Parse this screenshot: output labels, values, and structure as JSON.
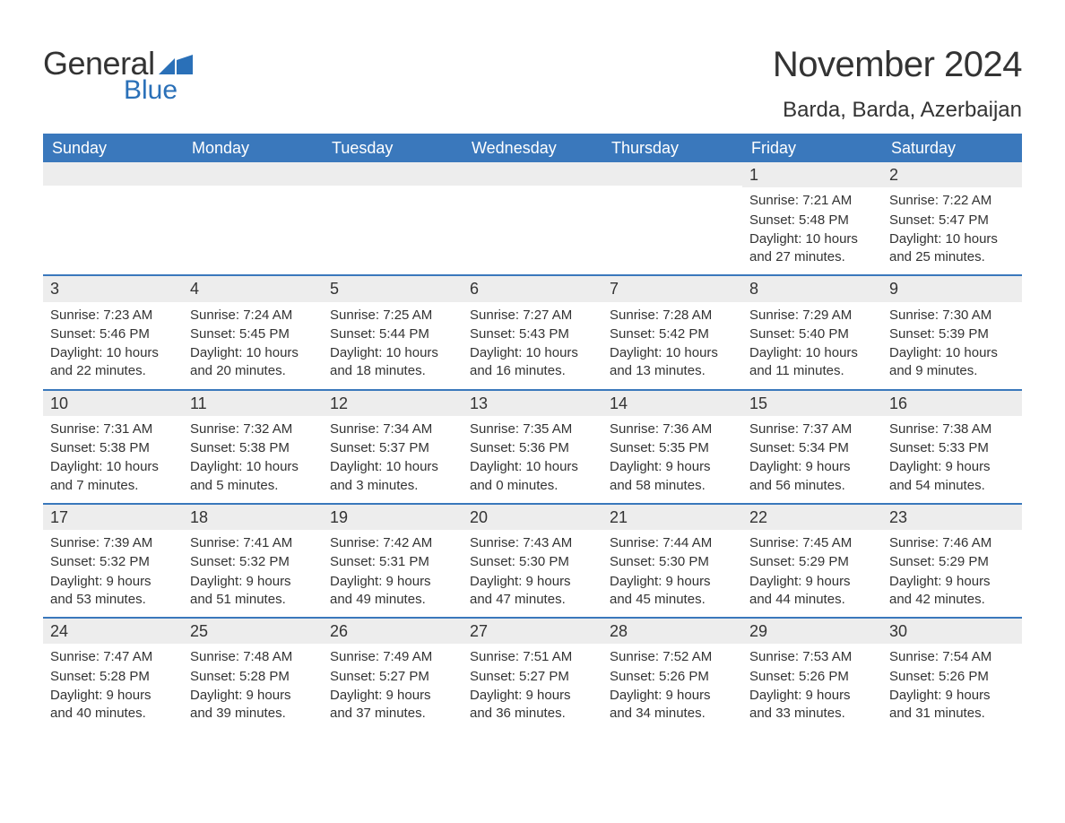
{
  "brand": {
    "word1": "General",
    "word2": "Blue",
    "flag_color": "#2a70b8"
  },
  "title": "November 2024",
  "location": "Barda, Barda, Azerbaijan",
  "colors": {
    "header_bg": "#3a78bc",
    "header_text": "#ffffff",
    "daynum_bg": "#ededed",
    "text": "#333333",
    "rule": "#3a78bc",
    "background": "#ffffff"
  },
  "day_names": [
    "Sunday",
    "Monday",
    "Tuesday",
    "Wednesday",
    "Thursday",
    "Friday",
    "Saturday"
  ],
  "weeks": [
    [
      null,
      null,
      null,
      null,
      null,
      {
        "n": "1",
        "sunrise": "7:21 AM",
        "sunset": "5:48 PM",
        "daylight": "10 hours and 27 minutes."
      },
      {
        "n": "2",
        "sunrise": "7:22 AM",
        "sunset": "5:47 PM",
        "daylight": "10 hours and 25 minutes."
      }
    ],
    [
      {
        "n": "3",
        "sunrise": "7:23 AM",
        "sunset": "5:46 PM",
        "daylight": "10 hours and 22 minutes."
      },
      {
        "n": "4",
        "sunrise": "7:24 AM",
        "sunset": "5:45 PM",
        "daylight": "10 hours and 20 minutes."
      },
      {
        "n": "5",
        "sunrise": "7:25 AM",
        "sunset": "5:44 PM",
        "daylight": "10 hours and 18 minutes."
      },
      {
        "n": "6",
        "sunrise": "7:27 AM",
        "sunset": "5:43 PM",
        "daylight": "10 hours and 16 minutes."
      },
      {
        "n": "7",
        "sunrise": "7:28 AM",
        "sunset": "5:42 PM",
        "daylight": "10 hours and 13 minutes."
      },
      {
        "n": "8",
        "sunrise": "7:29 AM",
        "sunset": "5:40 PM",
        "daylight": "10 hours and 11 minutes."
      },
      {
        "n": "9",
        "sunrise": "7:30 AM",
        "sunset": "5:39 PM",
        "daylight": "10 hours and 9 minutes."
      }
    ],
    [
      {
        "n": "10",
        "sunrise": "7:31 AM",
        "sunset": "5:38 PM",
        "daylight": "10 hours and 7 minutes."
      },
      {
        "n": "11",
        "sunrise": "7:32 AM",
        "sunset": "5:38 PM",
        "daylight": "10 hours and 5 minutes."
      },
      {
        "n": "12",
        "sunrise": "7:34 AM",
        "sunset": "5:37 PM",
        "daylight": "10 hours and 3 minutes."
      },
      {
        "n": "13",
        "sunrise": "7:35 AM",
        "sunset": "5:36 PM",
        "daylight": "10 hours and 0 minutes."
      },
      {
        "n": "14",
        "sunrise": "7:36 AM",
        "sunset": "5:35 PM",
        "daylight": "9 hours and 58 minutes."
      },
      {
        "n": "15",
        "sunrise": "7:37 AM",
        "sunset": "5:34 PM",
        "daylight": "9 hours and 56 minutes."
      },
      {
        "n": "16",
        "sunrise": "7:38 AM",
        "sunset": "5:33 PM",
        "daylight": "9 hours and 54 minutes."
      }
    ],
    [
      {
        "n": "17",
        "sunrise": "7:39 AM",
        "sunset": "5:32 PM",
        "daylight": "9 hours and 53 minutes."
      },
      {
        "n": "18",
        "sunrise": "7:41 AM",
        "sunset": "5:32 PM",
        "daylight": "9 hours and 51 minutes."
      },
      {
        "n": "19",
        "sunrise": "7:42 AM",
        "sunset": "5:31 PM",
        "daylight": "9 hours and 49 minutes."
      },
      {
        "n": "20",
        "sunrise": "7:43 AM",
        "sunset": "5:30 PM",
        "daylight": "9 hours and 47 minutes."
      },
      {
        "n": "21",
        "sunrise": "7:44 AM",
        "sunset": "5:30 PM",
        "daylight": "9 hours and 45 minutes."
      },
      {
        "n": "22",
        "sunrise": "7:45 AM",
        "sunset": "5:29 PM",
        "daylight": "9 hours and 44 minutes."
      },
      {
        "n": "23",
        "sunrise": "7:46 AM",
        "sunset": "5:29 PM",
        "daylight": "9 hours and 42 minutes."
      }
    ],
    [
      {
        "n": "24",
        "sunrise": "7:47 AM",
        "sunset": "5:28 PM",
        "daylight": "9 hours and 40 minutes."
      },
      {
        "n": "25",
        "sunrise": "7:48 AM",
        "sunset": "5:28 PM",
        "daylight": "9 hours and 39 minutes."
      },
      {
        "n": "26",
        "sunrise": "7:49 AM",
        "sunset": "5:27 PM",
        "daylight": "9 hours and 37 minutes."
      },
      {
        "n": "27",
        "sunrise": "7:51 AM",
        "sunset": "5:27 PM",
        "daylight": "9 hours and 36 minutes."
      },
      {
        "n": "28",
        "sunrise": "7:52 AM",
        "sunset": "5:26 PM",
        "daylight": "9 hours and 34 minutes."
      },
      {
        "n": "29",
        "sunrise": "7:53 AM",
        "sunset": "5:26 PM",
        "daylight": "9 hours and 33 minutes."
      },
      {
        "n": "30",
        "sunrise": "7:54 AM",
        "sunset": "5:26 PM",
        "daylight": "9 hours and 31 minutes."
      }
    ]
  ],
  "labels": {
    "sunrise": "Sunrise:",
    "sunset": "Sunset:",
    "daylight": "Daylight:"
  }
}
